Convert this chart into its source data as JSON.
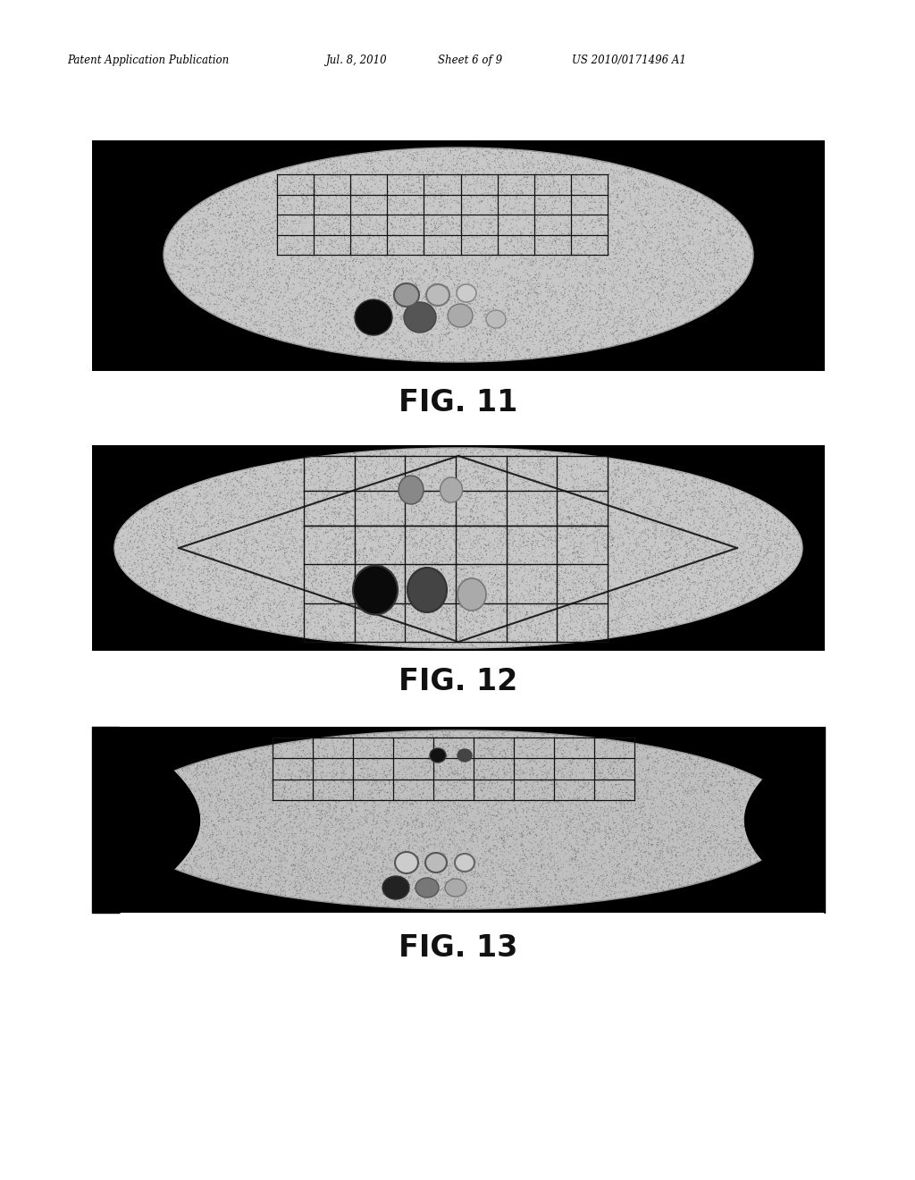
{
  "bg_color": "#ffffff",
  "header_text1": "Patent Application Publication",
  "header_text2": "Jul. 8, 2010",
  "header_text3": "Sheet 6 of 9",
  "header_text4": "US 2010/0171496 A1",
  "fig11_label": "FIG. 11",
  "fig12_label": "FIG. 12",
  "fig13_label": "FIG. 13"
}
